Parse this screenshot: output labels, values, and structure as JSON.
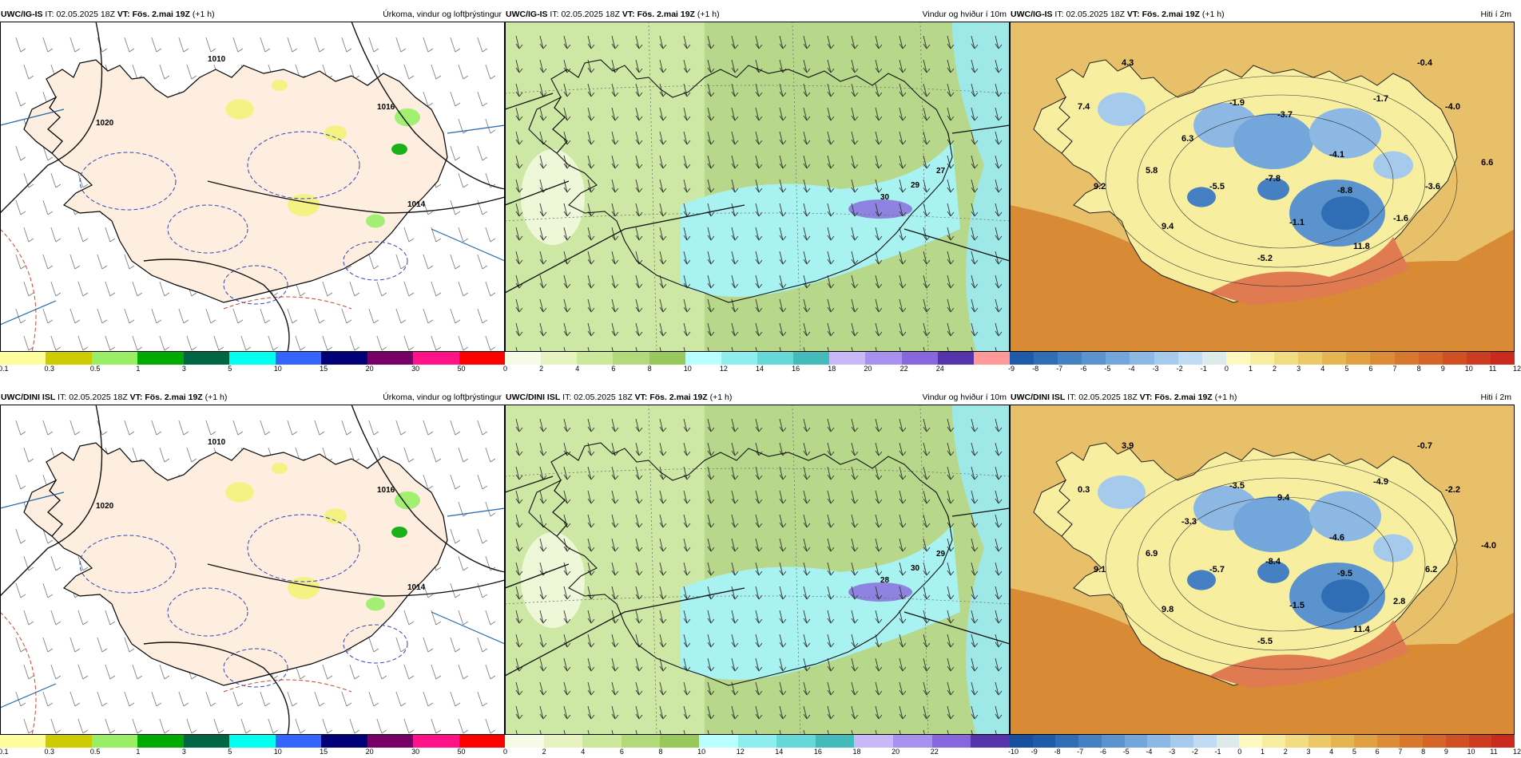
{
  "panels": [
    {
      "id": "p1",
      "model": "UWC/IG-IS",
      "it_label": "IT:",
      "it": "02.05.2025 18Z",
      "vt_label": "VT:",
      "vt": "Fös. 2.mai 19Z",
      "lead": "(+1 h)",
      "title": "Úrkoma, vindur og loftþrýstingur",
      "kind": "precip",
      "legend": {
        "colors": [
          "#fdfd9a",
          "#cccc00",
          "#99ee66",
          "#00aa00",
          "#006644",
          "#00ffee",
          "#3366ff",
          "#000077",
          "#770066",
          "#ff1188",
          "#ff0000"
        ],
        "ticks": [
          "0.1",
          "0.3",
          "0.5",
          "1",
          "3",
          "5",
          "10",
          "15",
          "20",
          "30",
          "50"
        ]
      },
      "labels": [
        "1014",
        "1016",
        "1020",
        "1010"
      ]
    },
    {
      "id": "p2",
      "model": "UWC/IG-IS",
      "it_label": "IT:",
      "it": "02.05.2025 18Z",
      "vt_label": "VT:",
      "vt": "Fös. 2.mai 19Z",
      "lead": "(+1 h)",
      "title": "Vindur og hviður í 10m",
      "kind": "wind",
      "legend": {
        "colors": [
          "#f6fbe6",
          "#e6f3c0",
          "#cce89a",
          "#b2d97a",
          "#98c85c",
          "#b8ffff",
          "#8eeeee",
          "#66d8d8",
          "#44bbbb",
          "#c8b8f8",
          "#a890ee",
          "#8866dd",
          "#5533aa",
          "#ff9999"
        ],
        "ticks": [
          "0",
          "2",
          "4",
          "6",
          "8",
          "10",
          "12",
          "14",
          "16",
          "18",
          "20",
          "22",
          "24"
        ]
      },
      "labels": [
        "30",
        "29",
        "27"
      ]
    },
    {
      "id": "p3",
      "model": "UWC/IG-IS",
      "it_label": "IT:",
      "it": "02.05.2025 18Z",
      "vt_label": "VT:",
      "vt": "Fös. 2.mai 19Z",
      "lead": "(+1 h)",
      "title": "Hiti í 2m",
      "kind": "temp",
      "legend": {
        "colors": [
          "#1e5aa8",
          "#2f6db5",
          "#4580c2",
          "#5b93cf",
          "#73a6da",
          "#8cb8e3",
          "#a6caec",
          "#c0dbf2",
          "#dcebea",
          "#fdf8c0",
          "#f8ec9e",
          "#f2dc82",
          "#ecc968",
          "#e6b552",
          "#e1a142",
          "#dc8c36",
          "#d8782e",
          "#d46428",
          "#d05024",
          "#cc3c20",
          "#c82a1e"
        ],
        "ticks": [
          "-9",
          "-8",
          "-7",
          "-6",
          "-5",
          "-4",
          "-3",
          "-2",
          "-1",
          "0",
          "1",
          "2",
          "3",
          "4",
          "5",
          "6",
          "7",
          "8",
          "9",
          "10",
          "11",
          "12"
        ]
      },
      "labels": [
        "4.3",
        "-0.4",
        "7.4",
        "-1.9",
        "-3.7",
        "-1.7",
        "-4.0",
        "6.3",
        "-4.1",
        "5.8",
        "6.6",
        "9.2",
        "-5.5",
        "-7.8",
        "-8.8",
        "-3.6",
        "9.4",
        "-1.1",
        "-1.6",
        "11.8",
        "-5.2"
      ]
    },
    {
      "id": "p4",
      "model": "UWC/DINI ISL",
      "it_label": "IT:",
      "it": "02.05.2025 18Z",
      "vt_label": "VT:",
      "vt": "Fös. 2.mai 19Z",
      "lead": "(+1 h)",
      "title": "Úrkoma, vindur og loftþrýstingur",
      "kind": "precip",
      "legend": {
        "colors": [
          "#fdfd9a",
          "#cccc00",
          "#99ee66",
          "#00aa00",
          "#006644",
          "#00ffee",
          "#3366ff",
          "#000077",
          "#770066",
          "#ff1188",
          "#ff0000"
        ],
        "ticks": [
          "0.1",
          "0.3",
          "0.5",
          "1",
          "3",
          "5",
          "10",
          "15",
          "20",
          "30",
          "50"
        ]
      },
      "labels": [
        "1014",
        "1016",
        "1020",
        "1010"
      ]
    },
    {
      "id": "p5",
      "model": "UWC/DINI ISL",
      "it_label": "IT:",
      "it": "02.05.2025 18Z",
      "vt_label": "VT:",
      "vt": "Fös. 2.mai 19Z",
      "lead": "(+1 h)",
      "title": "Vindur og hviður í 10m",
      "kind": "wind",
      "legend": {
        "colors": [
          "#f6fbe6",
          "#e6f3c0",
          "#cce89a",
          "#b2d97a",
          "#98c85c",
          "#b8ffff",
          "#8eeeee",
          "#66d8d8",
          "#44bbbb",
          "#c8b8f8",
          "#a890ee",
          "#8866dd",
          "#5533aa"
        ],
        "ticks": [
          "0",
          "2",
          "4",
          "6",
          "8",
          "10",
          "12",
          "14",
          "16",
          "18",
          "20",
          "22"
        ]
      },
      "labels": [
        "28",
        "30",
        "29"
      ]
    },
    {
      "id": "p6",
      "model": "UWC/DINI ISL",
      "it_label": "IT:",
      "it": "02.05.2025 18Z",
      "vt_label": "VT:",
      "vt": "Fös. 2.mai 19Z",
      "lead": "(+1 h)",
      "title": "Hiti í 2m",
      "kind": "temp",
      "legend": {
        "colors": [
          "#174f9c",
          "#1e5aa8",
          "#2f6db5",
          "#4580c2",
          "#5b93cf",
          "#73a6da",
          "#8cb8e3",
          "#a6caec",
          "#c0dbf2",
          "#dcebea",
          "#fdf8c0",
          "#f8ec9e",
          "#f2dc82",
          "#ecc968",
          "#e6b552",
          "#e1a142",
          "#dc8c36",
          "#d8782e",
          "#d46428",
          "#d05024",
          "#cc3c20",
          "#c82a1e"
        ],
        "ticks": [
          "-10",
          "-9",
          "-8",
          "-7",
          "-6",
          "-5",
          "-4",
          "-3",
          "-2",
          "-1",
          "0",
          "1",
          "2",
          "3",
          "4",
          "5",
          "6",
          "7",
          "8",
          "9",
          "10",
          "11",
          "12"
        ]
      },
      "labels": [
        "3.9",
        "-0.7",
        "0.3",
        "-3.5",
        "9.4",
        "-4.9",
        "-2.2",
        "-3.3",
        "-4.6",
        "6.9",
        "-4.0",
        "9.1",
        "-5.7",
        "-8.4",
        "-9.5",
        "6.2",
        "9.8",
        "-1.5",
        "2.8",
        "11.4",
        "-5.5"
      ]
    }
  ]
}
